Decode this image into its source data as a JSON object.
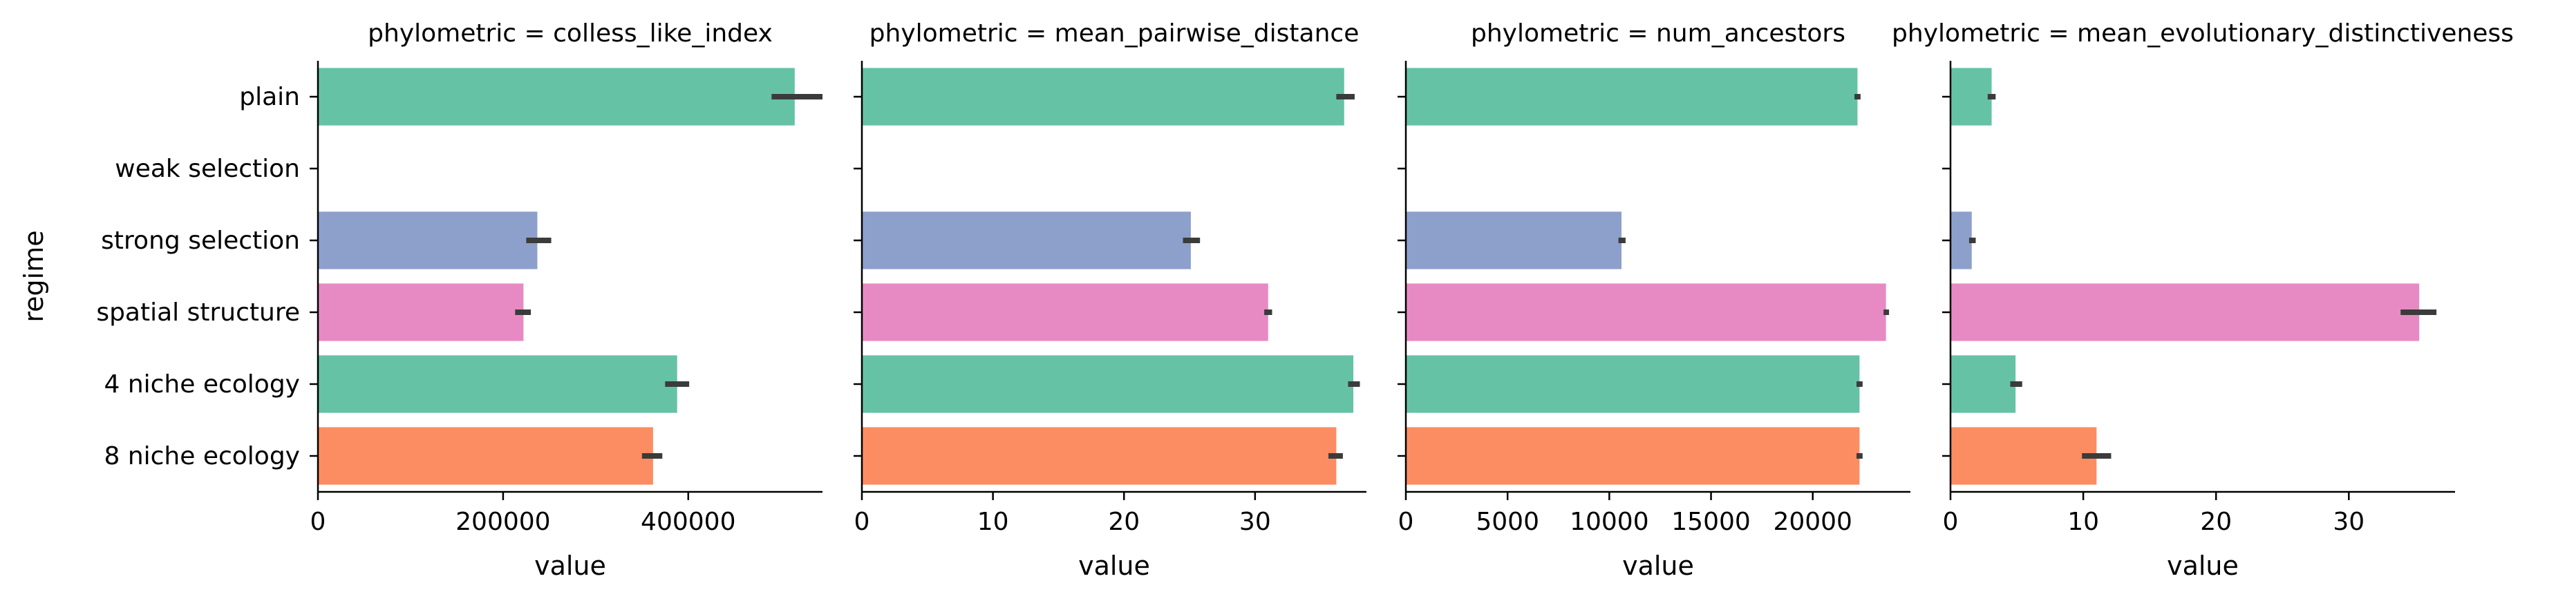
{
  "chart_data": {
    "type": "bar",
    "orientation": "horizontal",
    "ylabel": "regime",
    "categories": [
      "plain",
      "weak selection",
      "strong selection",
      "spatial structure",
      "4 niche ecology",
      "8 niche ecology"
    ],
    "colors": [
      "#66c2a5",
      "#fc8d62",
      "#8da0cb",
      "#e78ac3",
      "#66c2a5",
      "#fc8d62"
    ],
    "error_color": "#3b3b3b",
    "panels": [
      {
        "title": "phylometric = colless_like_index",
        "xlabel": "value",
        "xlim": [
          0,
          545000
        ],
        "xticks": [
          0,
          200000,
          400000
        ],
        "xtick_labels": [
          "0",
          "200000",
          "400000"
        ],
        "values": [
          515000,
          null,
          237000,
          222000,
          388000,
          362000
        ],
        "error_low": [
          490000,
          null,
          225000,
          213000,
          375000,
          350000
        ],
        "error_high": [
          545000,
          null,
          252000,
          230000,
          401000,
          372000
        ]
      },
      {
        "title": "phylometric = mean_pairwise_distance",
        "xlabel": "value",
        "xlim": [
          0,
          38.5
        ],
        "xticks": [
          0,
          10,
          20,
          30
        ],
        "xtick_labels": [
          "0",
          "10",
          "20",
          "30"
        ],
        "values": [
          36.8,
          null,
          25.1,
          31.0,
          37.5,
          36.2
        ],
        "error_low": [
          36.2,
          null,
          24.5,
          30.7,
          37.1,
          35.6
        ],
        "error_high": [
          37.6,
          null,
          25.8,
          31.3,
          38.0,
          36.7
        ]
      },
      {
        "title": "phylometric = num_ancestors",
        "xlabel": "value",
        "xlim": [
          0,
          24800
        ],
        "xticks": [
          0,
          5000,
          10000,
          15000,
          20000
        ],
        "xtick_labels": [
          "0",
          "5000",
          "10000",
          "15000",
          "20000"
        ],
        "values": [
          22200,
          null,
          10600,
          23600,
          22300,
          22300
        ],
        "error_low": [
          22050,
          null,
          10450,
          23480,
          22150,
          22150
        ],
        "error_high": [
          22350,
          null,
          10800,
          23750,
          22450,
          22450
        ]
      },
      {
        "title": "phylometric = mean_evolutionary_distinctiveness",
        "xlabel": "value",
        "xlim": [
          0,
          38.0
        ],
        "xticks": [
          0,
          10,
          20,
          30
        ],
        "xtick_labels": [
          "0",
          "10",
          "20",
          "30"
        ],
        "values": [
          3.1,
          null,
          1.6,
          35.3,
          4.9,
          11.0
        ],
        "error_low": [
          2.8,
          null,
          1.4,
          33.9,
          4.5,
          9.9
        ],
        "error_high": [
          3.4,
          null,
          1.9,
          36.6,
          5.4,
          12.1
        ]
      }
    ]
  }
}
